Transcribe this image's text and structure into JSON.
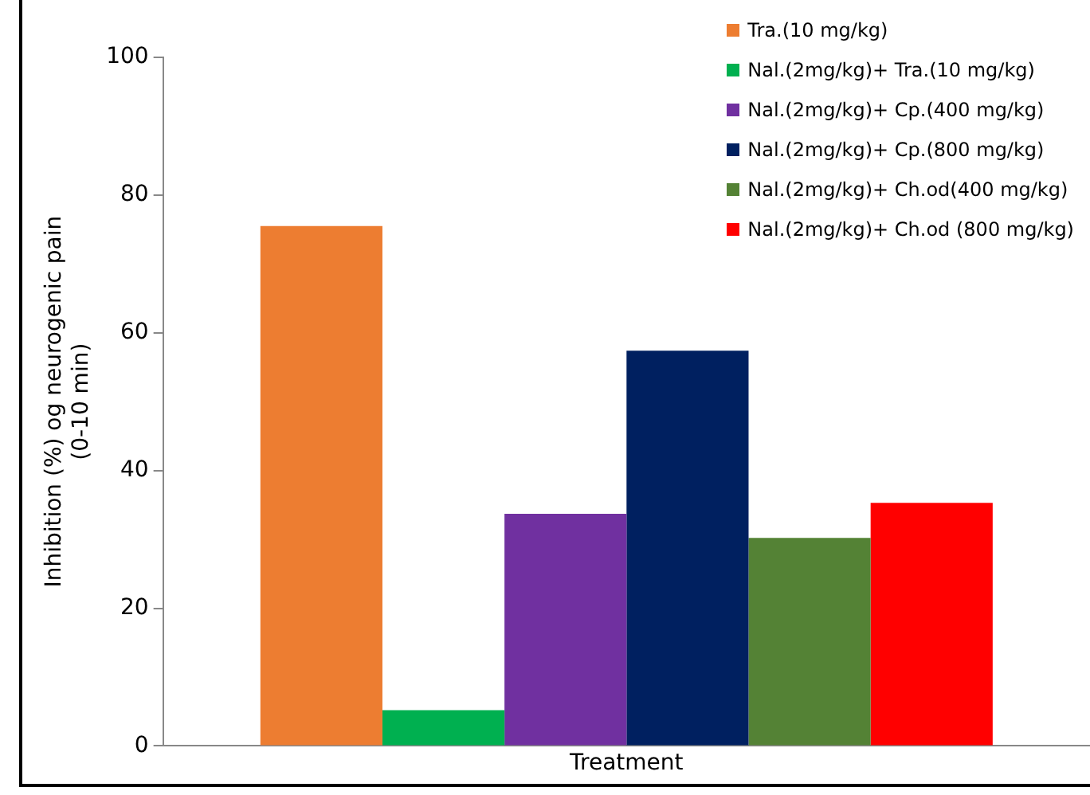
{
  "chart_data": {
    "type": "bar",
    "ylabel": "Inhibition (%) og neurogenic pain\n(0-10 min)",
    "categories": [
      "Treatment"
    ],
    "series": [
      {
        "name": "Tra.(10 mg/kg)",
        "color": "#ed7d31",
        "values": [
          75.5
        ]
      },
      {
        "name": "Nal.(2mg/kg)+ Tra.(10 mg/kg)",
        "color": "#00b050",
        "values": [
          5.2
        ]
      },
      {
        "name": "Nal.(2mg/kg)+ Cp.(400 mg/kg)",
        "color": "#7030a0",
        "values": [
          33.7
        ]
      },
      {
        "name": "Nal.(2mg/kg)+ Cp.(800 mg/kg)",
        "color": "#002060",
        "values": [
          57.4
        ]
      },
      {
        "name": "Nal.(2mg/kg)+ Ch.od(400 mg/kg)",
        "color": "#548235",
        "values": [
          30.2
        ]
      },
      {
        "name": "Nal.(2mg/kg)+ Ch.od (800 mg/kg)",
        "color": "#ff0000",
        "values": [
          35.3
        ]
      }
    ],
    "ylim": [
      0,
      100
    ],
    "yticks": [
      0,
      20,
      40,
      60,
      80,
      100
    ],
    "grid": false,
    "legend": "top right"
  }
}
